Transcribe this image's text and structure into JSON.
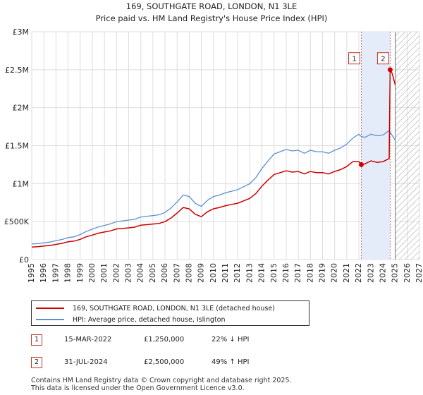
{
  "colors": {
    "property": "#cc0000",
    "hpi": "#5b8fd0",
    "grid": "#dddddd",
    "plot_bg": "#ffffff"
  },
  "chart_data": {
    "type": "line",
    "title": "169, SOUTHGATE ROAD, LONDON, N1 3LE",
    "subtitle": "Price paid vs. HM Land Registry's House Price Index (HPI)",
    "xlabel": "",
    "ylabel": "",
    "xlim": [
      1995,
      2027
    ],
    "ylim": [
      0,
      3000000
    ],
    "x_ticks": [
      1995,
      1996,
      1997,
      1998,
      1999,
      2000,
      2001,
      2002,
      2003,
      2004,
      2005,
      2006,
      2007,
      2008,
      2009,
      2010,
      2011,
      2012,
      2013,
      2014,
      2015,
      2016,
      2017,
      2018,
      2019,
      2020,
      2021,
      2022,
      2023,
      2024,
      2025,
      2026,
      2027
    ],
    "y_ticks": [
      {
        "value": 0,
        "label": "£0"
      },
      {
        "value": 500000,
        "label": "£500K"
      },
      {
        "value": 1000000,
        "label": "£1M"
      },
      {
        "value": 1500000,
        "label": "£1.5M"
      },
      {
        "value": 2000000,
        "label": "£2M"
      },
      {
        "value": 2500000,
        "label": "£2.5M"
      },
      {
        "value": 3000000,
        "label": "£3M"
      }
    ],
    "grid": true,
    "highlight_band": [
      2022.2,
      2024.58
    ],
    "hatched_from": 2025.0,
    "series": [
      {
        "name": "hpi",
        "label": "HPI: Average price, detached house, Islington",
        "x": [
          1995.0,
          1995.5,
          1996.0,
          1996.5,
          1997.0,
          1997.5,
          1998.0,
          1998.5,
          1999.0,
          1999.5,
          2000.0,
          2000.5,
          2001.0,
          2001.5,
          2002.0,
          2002.5,
          2003.0,
          2003.5,
          2004.0,
          2004.5,
          2005.0,
          2005.5,
          2006.0,
          2006.5,
          2007.0,
          2007.5,
          2008.0,
          2008.5,
          2009.0,
          2009.5,
          2010.0,
          2010.5,
          2011.0,
          2011.5,
          2012.0,
          2012.5,
          2013.0,
          2013.5,
          2014.0,
          2014.5,
          2015.0,
          2015.5,
          2016.0,
          2016.5,
          2017.0,
          2017.5,
          2018.0,
          2018.5,
          2019.0,
          2019.5,
          2020.0,
          2020.5,
          2021.0,
          2021.5,
          2022.0,
          2022.2,
          2022.5,
          2023.0,
          2023.5,
          2024.0,
          2024.5,
          2025.0
        ],
        "values": [
          205000,
          210000,
          220000,
          230000,
          250000,
          265000,
          290000,
          300000,
          330000,
          370000,
          400000,
          430000,
          450000,
          470000,
          500000,
          510000,
          520000,
          530000,
          560000,
          570000,
          580000,
          590000,
          620000,
          680000,
          760000,
          850000,
          830000,
          740000,
          700000,
          780000,
          830000,
          850000,
          880000,
          900000,
          920000,
          960000,
          1000000,
          1080000,
          1200000,
          1300000,
          1390000,
          1420000,
          1450000,
          1430000,
          1440000,
          1400000,
          1440000,
          1420000,
          1420000,
          1400000,
          1440000,
          1470000,
          1520000,
          1600000,
          1650000,
          1620000,
          1610000,
          1650000,
          1630000,
          1640000,
          1700000,
          1570000
        ]
      },
      {
        "name": "property",
        "label": "169, SOUTHGATE ROAD, LONDON, N1 3LE (detached house)",
        "x": [
          1995.0,
          1995.5,
          1996.0,
          1996.5,
          1997.0,
          1997.5,
          1998.0,
          1998.5,
          1999.0,
          1999.5,
          2000.0,
          2000.5,
          2001.0,
          2001.5,
          2002.0,
          2002.5,
          2003.0,
          2003.5,
          2004.0,
          2004.5,
          2005.0,
          2005.5,
          2006.0,
          2006.5,
          2007.0,
          2007.5,
          2008.0,
          2008.5,
          2009.0,
          2009.5,
          2010.0,
          2010.5,
          2011.0,
          2011.5,
          2012.0,
          2012.5,
          2013.0,
          2013.5,
          2014.0,
          2014.5,
          2015.0,
          2015.5,
          2016.0,
          2016.5,
          2017.0,
          2017.5,
          2018.0,
          2018.5,
          2019.0,
          2019.5,
          2020.0,
          2020.5,
          2021.0,
          2021.5,
          2022.0,
          2022.2,
          2022.5,
          2023.0,
          2023.5,
          2024.0,
          2024.5,
          2024.58,
          2024.75,
          2025.0
        ],
        "values": [
          165000,
          170000,
          178000,
          186000,
          200000,
          214000,
          234000,
          243000,
          267000,
          300000,
          322000,
          347000,
          363000,
          378000,
          403000,
          410000,
          418000,
          427000,
          452000,
          460000,
          468000,
          476000,
          500000,
          548000,
          613000,
          685000,
          668000,
          596000,
          565000,
          629000,
          669000,
          686000,
          710000,
          726000,
          742000,
          774000,
          806000,
          870000,
          967000,
          1048000,
          1120000,
          1144000,
          1168000,
          1152000,
          1160000,
          1128000,
          1160000,
          1144000,
          1144000,
          1128000,
          1160000,
          1185000,
          1225000,
          1290000,
          1290000,
          1250000,
          1260000,
          1300000,
          1280000,
          1290000,
          1330000,
          2500000,
          2450000,
          2300000
        ]
      }
    ],
    "markers": [
      {
        "label": "1",
        "x": 2022.2,
        "value": 1250000,
        "badge_value": 2650000
      },
      {
        "label": "2",
        "x": 2024.58,
        "value": 2500000,
        "badge_value": 2650000
      }
    ]
  },
  "legend": {
    "property_label": "169, SOUTHGATE ROAD, LONDON, N1 3LE (detached house)",
    "hpi_label": "HPI: Average price, detached house, Islington"
  },
  "transactions": [
    {
      "num": "1",
      "date": "15-MAR-2022",
      "price": "£1,250,000",
      "hpi": "22% ↓ HPI"
    },
    {
      "num": "2",
      "date": "31-JUL-2024",
      "price": "£2,500,000",
      "hpi": "49% ↑ HPI"
    }
  ],
  "footer": {
    "line1": "Contains HM Land Registry data © Crown copyright and database right 2025.",
    "line2": "This data is licensed under the Open Government Licence v3.0."
  }
}
